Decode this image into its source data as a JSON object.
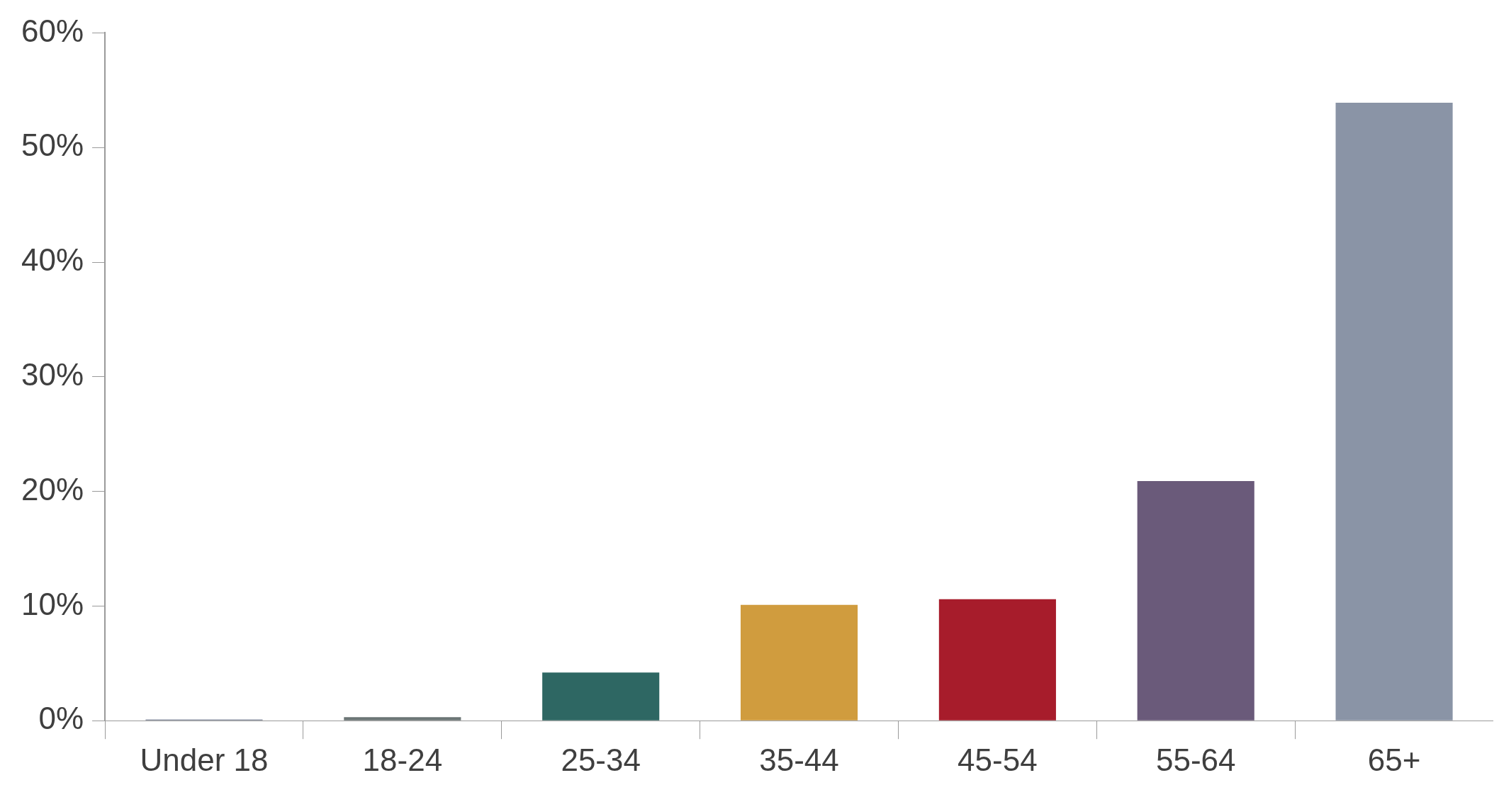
{
  "chart_data": {
    "type": "bar",
    "categories": [
      "Under 18",
      "18-24",
      "25-34",
      "35-44",
      "45-54",
      "55-64",
      "65+"
    ],
    "values": [
      0.1,
      0.3,
      4.2,
      10.1,
      10.6,
      20.9,
      53.9
    ],
    "colors": [
      "#7f8699",
      "#6b7575",
      "#2e6763",
      "#d09c3e",
      "#a71c2b",
      "#6a5a7a",
      "#8a94a6"
    ],
    "ylim": [
      0,
      60
    ],
    "yticks": [
      {
        "value": 0,
        "label": "0%"
      },
      {
        "value": 10,
        "label": "10%"
      },
      {
        "value": 20,
        "label": "20%"
      },
      {
        "value": 30,
        "label": "30%"
      },
      {
        "value": 40,
        "label": "40%"
      },
      {
        "value": 50,
        "label": "50%"
      },
      {
        "value": 60,
        "label": "60%"
      }
    ],
    "grid": false,
    "legend": false
  }
}
